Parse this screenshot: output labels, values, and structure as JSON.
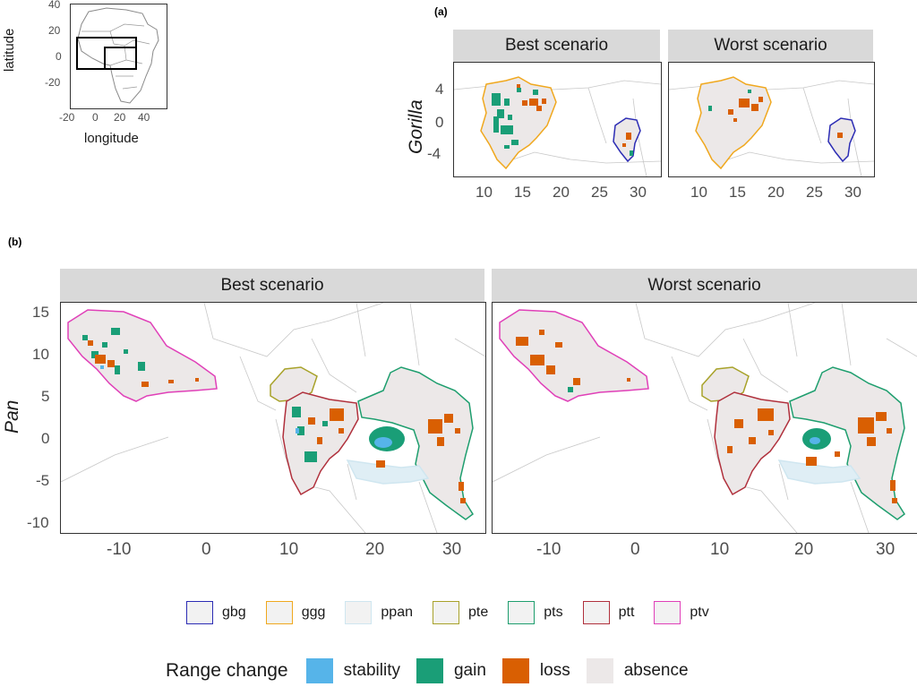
{
  "inset": {
    "xlabel": "longitude",
    "ylabel": "latitude",
    "xticks": [
      "-20",
      "0",
      "20",
      "40"
    ],
    "yticks": [
      "40",
      "20",
      "0",
      "-20"
    ]
  },
  "panel_a": {
    "label": "(a)",
    "ylabel": "Gorilla",
    "xticks": [
      "10",
      "15",
      "20",
      "25",
      "30"
    ],
    "yticks": [
      "4",
      "0",
      "-4"
    ],
    "facets": [
      "Best scenario",
      "Worst scenario"
    ]
  },
  "panel_b": {
    "label": "(b)",
    "ylabel": "Pan",
    "xticks": [
      "-10",
      "0",
      "10",
      "20",
      "30"
    ],
    "yticks": [
      "15",
      "10",
      "5",
      "0",
      "-5",
      "-10"
    ],
    "facets": [
      "Best scenario",
      "Worst scenario"
    ]
  },
  "legend_taxa": {
    "items": [
      {
        "label": "gbg",
        "color": "#2c2cb4"
      },
      {
        "label": "ggg",
        "color": "#f0a81e"
      },
      {
        "label": "ppan",
        "color": "#cfe6f0"
      },
      {
        "label": "pte",
        "color": "#a8a22a"
      },
      {
        "label": "pts",
        "color": "#1e9e6e"
      },
      {
        "label": "ptt",
        "color": "#b0303c"
      },
      {
        "label": "ptv",
        "color": "#e040b8"
      }
    ]
  },
  "legend_range": {
    "title": "Range change",
    "items": [
      {
        "label": "stability",
        "color": "#56b4e9"
      },
      {
        "label": "gain",
        "color": "#1a9e77"
      },
      {
        "label": "loss",
        "color": "#d95f02"
      },
      {
        "label": "absence",
        "color": "#ece8e8"
      }
    ]
  }
}
